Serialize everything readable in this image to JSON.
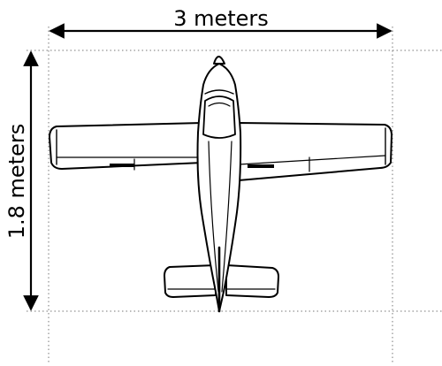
{
  "dimensions": {
    "width_label": "3 meters",
    "height_label": "1.8 meters"
  },
  "figure": {
    "subject_icon": "airplane-top-view-icon"
  },
  "colors": {
    "line": "#000000",
    "guide": "#777777",
    "background": "#ffffff"
  }
}
